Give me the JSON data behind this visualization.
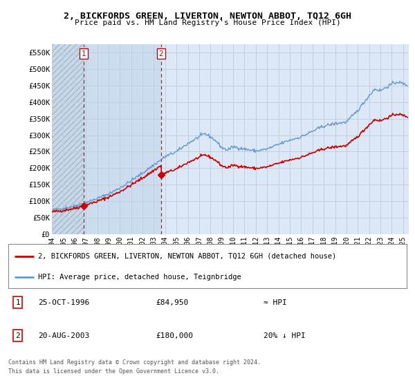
{
  "title": "2, BICKFORDS GREEN, LIVERTON, NEWTON ABBOT, TQ12 6GH",
  "subtitle": "Price paid vs. HM Land Registry's House Price Index (HPI)",
  "red_line_label": "2, BICKFORDS GREEN, LIVERTON, NEWTON ABBOT, TQ12 6GH (detached house)",
  "blue_line_label": "HPI: Average price, detached house, Teignbridge",
  "transaction1_date": "25-OCT-1996",
  "transaction1_price": "£84,950",
  "transaction1_hpi": "≈ HPI",
  "transaction2_date": "20-AUG-2003",
  "transaction2_price": "£180,000",
  "transaction2_hpi": "20% ↓ HPI",
  "footnote1": "Contains HM Land Registry data © Crown copyright and database right 2024.",
  "footnote2": "This data is licensed under the Open Government Licence v3.0.",
  "ylim": [
    0,
    575000
  ],
  "yticks": [
    0,
    50000,
    100000,
    150000,
    200000,
    250000,
    300000,
    350000,
    400000,
    450000,
    500000,
    550000
  ],
  "ytick_labels": [
    "£0",
    "£50K",
    "£100K",
    "£150K",
    "£200K",
    "£250K",
    "£300K",
    "£350K",
    "£400K",
    "£450K",
    "£500K",
    "£550K"
  ],
  "xlim_start": 1994.0,
  "xlim_end": 2025.5,
  "xtick_years": [
    1994,
    1995,
    1996,
    1997,
    1998,
    1999,
    2000,
    2001,
    2002,
    2003,
    2004,
    2005,
    2006,
    2007,
    2008,
    2009,
    2010,
    2011,
    2012,
    2013,
    2014,
    2015,
    2016,
    2017,
    2018,
    2019,
    2020,
    2021,
    2022,
    2023,
    2024,
    2025
  ],
  "background_color": "#dce8f5",
  "plot_bg_color": "#dce8f5",
  "grid_color": "#c8d8e8",
  "red_color": "#cc0000",
  "blue_color": "#6699cc",
  "marker1_x": 1996.82,
  "marker1_y": 84950,
  "marker2_x": 2003.64,
  "marker2_y": 180000,
  "vline1_x": 1996.82,
  "vline2_x": 2003.64,
  "shade_color": "#cddcef",
  "hatch_color": "#b0c0d0"
}
